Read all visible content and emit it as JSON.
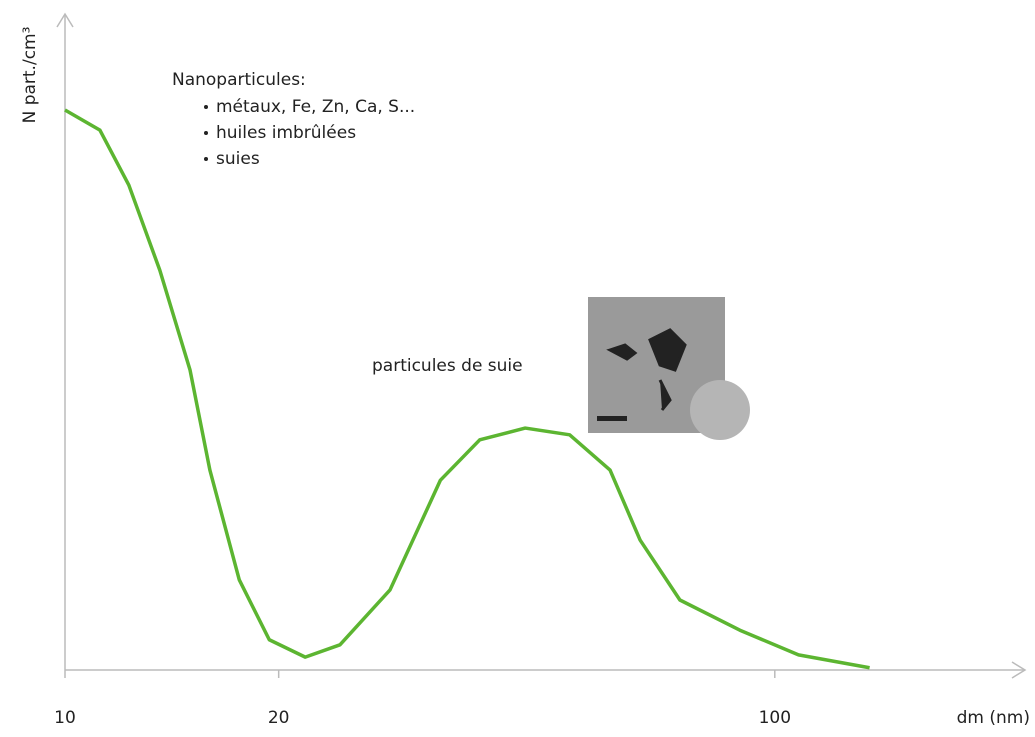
{
  "chart_data": {
    "type": "line",
    "ylabel": "N part./cm³",
    "xlabel": "dm (nm)",
    "xscale": "log",
    "x": [
      10,
      11.2,
      12.3,
      13.6,
      15.0,
      16.0,
      17.6,
      19.4,
      21.8,
      24.4,
      28.7,
      33.8,
      38.4,
      44.5,
      51.4,
      58.6,
      64.6,
      73.5,
      89.3,
      108,
      136
    ],
    "series": [
      {
        "color": "#5cb531",
        "values": [
          100,
          96.4,
          86.6,
          71.4,
          53.6,
          35.7,
          16.1,
          5.4,
          2.3,
          4.5,
          14.3,
          33.9,
          41.1,
          43.2,
          42,
          35.7,
          23.2,
          12.5,
          7.1,
          2.7,
          0.4
        ]
      }
    ],
    "xlim": [
      10,
      180
    ],
    "xticks": [
      10,
      20,
      100
    ],
    "ylim": [
      0,
      110
    ],
    "annotations": [
      "Nanoparticules:",
      "métaux, Fe, Zn, Ca, S...",
      "huiles imbrûlées",
      "suies",
      "particules de suie"
    ]
  }
}
